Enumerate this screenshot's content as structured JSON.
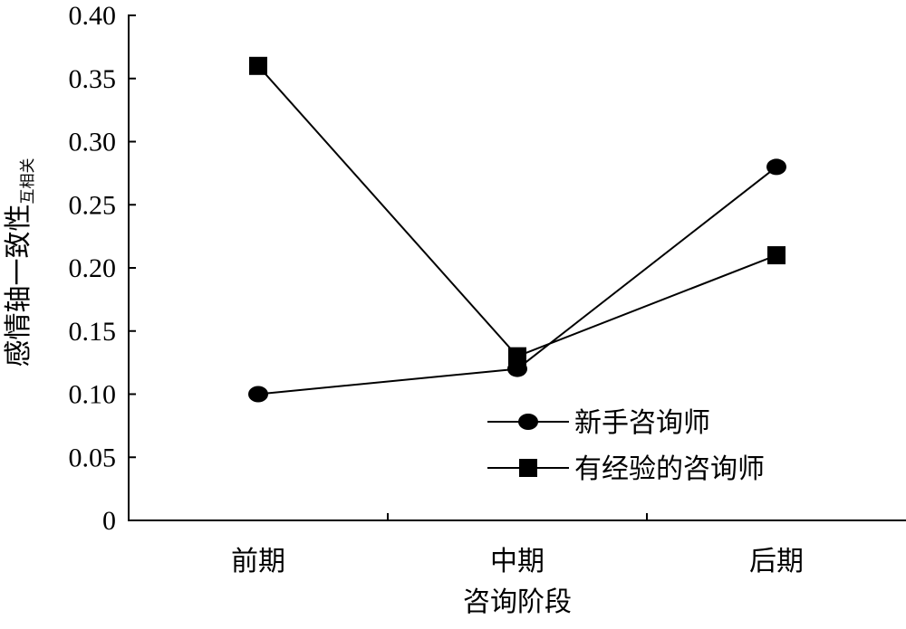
{
  "chart_data": {
    "type": "line",
    "x_label": "咨询阶段",
    "y_label": "感情轴一致性",
    "y_label_subscript": "互相关",
    "categories": [
      "前期",
      "中期",
      "后期"
    ],
    "series": [
      {
        "name": "新手咨询师",
        "color": "#000000",
        "marker": "circle",
        "values": [
          0.1,
          0.12,
          0.28
        ]
      },
      {
        "name": "有经验的咨询师",
        "color": "#000000",
        "marker": "square",
        "values": [
          0.36,
          0.13,
          0.21
        ]
      }
    ],
    "ylim": [
      0,
      0.4
    ],
    "yticks": [
      0,
      0.05,
      {
        "value": 0.1,
        "label": "0.10"
      },
      0.15,
      {
        "value": 0.2,
        "label": "0.20"
      },
      0.25,
      {
        "value": 0.3,
        "label": "0.30"
      },
      0.35,
      {
        "value": 0.4,
        "label": "0.40"
      }
    ],
    "grid": false
  }
}
